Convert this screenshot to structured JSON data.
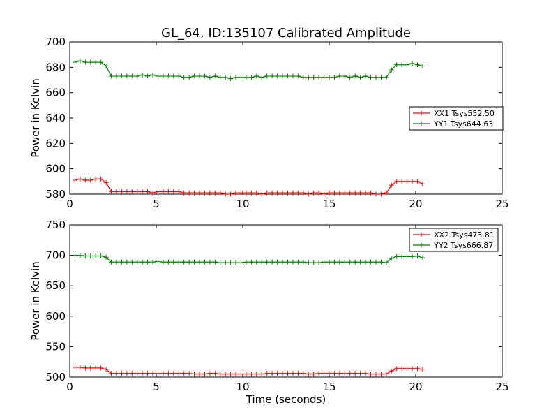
{
  "chart_data": [
    {
      "type": "line",
      "title": "GL_64, ID:135107 Calibrated Amplitude",
      "xlabel": "",
      "ylabel": "Power in Kelvin",
      "xlim": [
        0,
        25
      ],
      "ylim": [
        580,
        700
      ],
      "xticks": [
        0,
        5,
        10,
        15,
        20,
        25
      ],
      "yticks": [
        580,
        600,
        620,
        640,
        660,
        680,
        700
      ],
      "legend_position": "center-right",
      "x": [
        0.3,
        0.6,
        0.9,
        1.2,
        1.5,
        1.8,
        2.1,
        2.4,
        2.7,
        3.0,
        3.3,
        3.6,
        3.9,
        4.2,
        4.5,
        4.8,
        5.1,
        5.4,
        5.7,
        6.0,
        6.3,
        6.6,
        6.9,
        7.2,
        7.5,
        7.8,
        8.1,
        8.4,
        8.7,
        9.0,
        9.3,
        9.6,
        9.9,
        10.2,
        10.5,
        10.8,
        11.1,
        11.4,
        11.7,
        12.0,
        12.3,
        12.6,
        12.9,
        13.2,
        13.5,
        13.8,
        14.1,
        14.4,
        14.7,
        15.0,
        15.3,
        15.6,
        15.9,
        16.2,
        16.5,
        16.8,
        17.1,
        17.4,
        17.7,
        18.0,
        18.3,
        18.6,
        18.9,
        19.2,
        19.5,
        19.8,
        20.1,
        20.4
      ],
      "series": [
        {
          "name": "XX1 Tsys552.50",
          "color": "#ff0000",
          "values": [
            591,
            592,
            591,
            591,
            592,
            592,
            589,
            582,
            582,
            582,
            582,
            582,
            582,
            582,
            582,
            581,
            582,
            582,
            582,
            582,
            582,
            581,
            581,
            581,
            581,
            581,
            581,
            581,
            581,
            580,
            580,
            581,
            581,
            581,
            581,
            581,
            580,
            581,
            581,
            581,
            581,
            581,
            581,
            581,
            581,
            580,
            581,
            581,
            580,
            581,
            581,
            581,
            581,
            581,
            581,
            581,
            581,
            581,
            580,
            580,
            581,
            587,
            590,
            590,
            590,
            590,
            590,
            588
          ]
        },
        {
          "name": "YY1 Tsys644.63",
          "color": "#008000",
          "values": [
            684,
            685,
            684,
            684,
            684,
            684,
            681,
            673,
            673,
            673,
            673,
            673,
            673,
            674,
            673,
            674,
            673,
            673,
            673,
            673,
            673,
            672,
            672,
            673,
            673,
            673,
            672,
            673,
            672,
            672,
            671,
            672,
            672,
            672,
            672,
            673,
            672,
            673,
            673,
            673,
            673,
            673,
            673,
            673,
            672,
            672,
            672,
            672,
            672,
            672,
            672,
            673,
            673,
            672,
            673,
            672,
            673,
            672,
            672,
            672,
            672,
            678,
            682,
            682,
            682,
            683,
            682,
            681
          ]
        }
      ]
    },
    {
      "type": "line",
      "title": "",
      "xlabel": "Time (seconds)",
      "ylabel": "Power in Kelvin",
      "xlim": [
        0,
        25
      ],
      "ylim": [
        500,
        750
      ],
      "xticks": [
        0,
        5,
        10,
        15,
        20,
        25
      ],
      "yticks": [
        500,
        550,
        600,
        650,
        700,
        750
      ],
      "legend_position": "top-right",
      "x": [
        0.3,
        0.6,
        0.9,
        1.2,
        1.5,
        1.8,
        2.1,
        2.4,
        2.7,
        3.0,
        3.3,
        3.6,
        3.9,
        4.2,
        4.5,
        4.8,
        5.1,
        5.4,
        5.7,
        6.0,
        6.3,
        6.6,
        6.9,
        7.2,
        7.5,
        7.8,
        8.1,
        8.4,
        8.7,
        9.0,
        9.3,
        9.6,
        9.9,
        10.2,
        10.5,
        10.8,
        11.1,
        11.4,
        11.7,
        12.0,
        12.3,
        12.6,
        12.9,
        13.2,
        13.5,
        13.8,
        14.1,
        14.4,
        14.7,
        15.0,
        15.3,
        15.6,
        15.9,
        16.2,
        16.5,
        16.8,
        17.1,
        17.4,
        17.7,
        18.0,
        18.3,
        18.6,
        18.9,
        19.2,
        19.5,
        19.8,
        20.1,
        20.4
      ],
      "series": [
        {
          "name": "XX2 Tsys473.81",
          "color": "#ff0000",
          "values": [
            516,
            516,
            515,
            515,
            515,
            515,
            513,
            506,
            506,
            506,
            506,
            506,
            506,
            506,
            506,
            506,
            506,
            506,
            506,
            506,
            506,
            506,
            506,
            505,
            505,
            505,
            506,
            506,
            505,
            505,
            505,
            505,
            505,
            505,
            505,
            505,
            505,
            506,
            506,
            506,
            506,
            506,
            506,
            506,
            506,
            505,
            505,
            506,
            506,
            506,
            506,
            506,
            506,
            506,
            506,
            506,
            506,
            505,
            505,
            505,
            505,
            510,
            514,
            514,
            514,
            514,
            514,
            513
          ]
        },
        {
          "name": "YY2 Tsys666.87",
          "color": "#008000",
          "values": [
            700,
            700,
            699,
            699,
            699,
            699,
            697,
            689,
            689,
            689,
            689,
            689,
            689,
            689,
            689,
            689,
            690,
            689,
            689,
            689,
            689,
            689,
            689,
            689,
            689,
            689,
            689,
            689,
            688,
            688,
            688,
            688,
            688,
            689,
            689,
            689,
            689,
            689,
            689,
            689,
            689,
            689,
            689,
            689,
            689,
            688,
            688,
            688,
            689,
            689,
            689,
            689,
            689,
            689,
            689,
            689,
            689,
            689,
            689,
            689,
            688,
            695,
            698,
            698,
            698,
            698,
            699,
            696
          ]
        }
      ]
    }
  ]
}
